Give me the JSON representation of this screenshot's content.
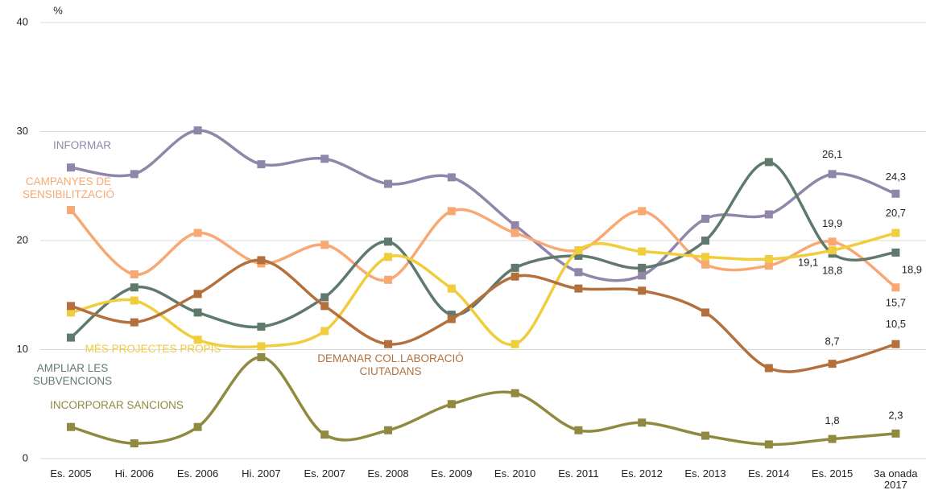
{
  "chart_data": {
    "type": "line",
    "y_label": "%",
    "categories": [
      "Es. 2005",
      "Hi. 2006",
      "Es. 2006",
      "Hi. 2007",
      "Es. 2007",
      "Es. 2008",
      "Es. 2009",
      "Es. 2010",
      "Es. 2011",
      "Es. 2012",
      "Es. 2013",
      "Es. 2014",
      "Es. 2015",
      "3a onada 2017"
    ],
    "ylim": [
      0,
      40
    ],
    "yticks": [
      0,
      10,
      20,
      30,
      40
    ],
    "grid": true,
    "series": [
      {
        "name": "INFORMAR",
        "color": "#8f86aa",
        "values": [
          26.7,
          26.1,
          30.1,
          27.0,
          27.5,
          25.2,
          25.8,
          21.4,
          17.1,
          16.8,
          22.0,
          22.4,
          26.1,
          24.3
        ],
        "value_labels": [
          null,
          null,
          null,
          null,
          null,
          null,
          null,
          null,
          null,
          null,
          null,
          null,
          "26,1",
          "24,3"
        ]
      },
      {
        "name": "CAMPANYES DE SENSIBILITZACIÓ",
        "color": "#f8a873",
        "values": [
          22.8,
          16.9,
          20.7,
          17.9,
          19.6,
          16.4,
          22.7,
          20.7,
          19.1,
          22.7,
          17.8,
          17.7,
          19.9,
          15.7
        ],
        "value_labels": [
          null,
          null,
          null,
          null,
          null,
          null,
          null,
          null,
          null,
          null,
          null,
          null,
          "19,9",
          "15,7"
        ]
      },
      {
        "name": "AMPLIAR LES SUBVENCIONS",
        "color": "#5f7a6c",
        "values": [
          11.1,
          15.7,
          13.4,
          12.1,
          14.8,
          19.9,
          13.2,
          17.5,
          18.6,
          17.5,
          20.0,
          27.2,
          18.8,
          18.9
        ],
        "value_labels": [
          null,
          null,
          null,
          null,
          null,
          null,
          null,
          null,
          null,
          null,
          null,
          null,
          "18,8",
          "18,9"
        ]
      },
      {
        "name": "MÉS PROJECTES PROPIS",
        "color": "#efcd3c",
        "values": [
          13.4,
          14.5,
          10.9,
          10.3,
          11.7,
          18.5,
          15.6,
          10.5,
          19.1,
          19.0,
          18.5,
          18.3,
          19.1,
          20.7
        ],
        "value_labels": [
          null,
          null,
          null,
          null,
          null,
          null,
          null,
          null,
          null,
          null,
          null,
          null,
          "19,1",
          "20,7"
        ]
      },
      {
        "name": "DEMANAR COL.LABORACIÓ CIUTADANS",
        "color": "#b4703c",
        "values": [
          14.0,
          12.5,
          15.1,
          18.2,
          14.0,
          10.5,
          12.8,
          16.7,
          15.6,
          15.4,
          13.4,
          8.3,
          8.7,
          10.5
        ],
        "value_labels": [
          null,
          null,
          null,
          null,
          null,
          null,
          null,
          null,
          null,
          null,
          null,
          null,
          "8,7",
          "10,5"
        ]
      },
      {
        "name": "INCORPORAR SANCIONS",
        "color": "#8f8a40",
        "values": [
          2.9,
          1.4,
          2.9,
          9.3,
          2.2,
          2.6,
          5.0,
          6.0,
          2.6,
          3.3,
          2.1,
          1.3,
          1.8,
          2.3
        ],
        "value_labels": [
          null,
          null,
          null,
          null,
          null,
          null,
          null,
          null,
          null,
          null,
          null,
          null,
          "1,8",
          "2,3"
        ]
      }
    ]
  }
}
